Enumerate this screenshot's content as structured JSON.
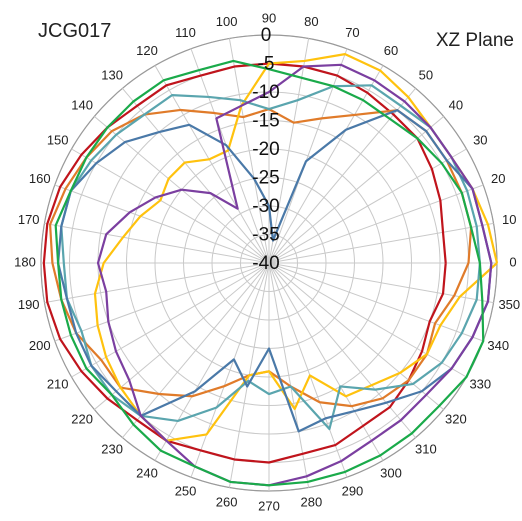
{
  "chart_data": {
    "type": "polar-line",
    "title": "JCG017",
    "subtitle": "XZ  Plane",
    "angular_ticks": [
      "0",
      "10",
      "20",
      "30",
      "40",
      "50",
      "60",
      "70",
      "80",
      "90",
      "100",
      "110",
      "120",
      "130",
      "140",
      "150",
      "160",
      "170",
      "180",
      "190",
      "200",
      "210",
      "220",
      "230",
      "240",
      "250",
      "260",
      "270",
      "280",
      "290",
      "300",
      "310",
      "320",
      "330",
      "340",
      "350"
    ],
    "radial_ticks": [
      "0",
      "-5",
      "-10",
      "-15",
      "-20",
      "-25",
      "-30",
      "-35",
      "-40"
    ],
    "radial_range": [
      -40,
      0
    ],
    "angular_step": 10,
    "grid": true,
    "legend": "none",
    "series": [
      {
        "color": "#c0141c",
        "values": [
          -9,
          -9,
          -8,
          -7,
          -6,
          -6,
          -5.5,
          -5,
          -5,
          -5,
          -5,
          -5,
          -4,
          -4,
          -3,
          -2,
          -1,
          -0.5,
          -0.5,
          -0.5,
          -1,
          -2,
          -3,
          -4,
          -4,
          -5,
          -5,
          -5,
          -6,
          -6,
          -7,
          -7,
          -8,
          -9,
          -10,
          -9
        ]
      },
      {
        "color": "#e07b2a",
        "values": [
          -5,
          -4,
          -4,
          -4,
          -4,
          -5,
          -10,
          -13,
          -15,
          -13,
          -14,
          -12,
          -9,
          -6,
          -4,
          -3,
          -2,
          -1,
          -2,
          -3,
          -4,
          -6,
          -6,
          -10,
          -13,
          -17,
          -20,
          -21,
          -18,
          -14,
          -11,
          -9,
          -8,
          -8,
          -9,
          -7
        ]
      },
      {
        "color": "#ffc20e",
        "values": [
          0,
          -1,
          -2,
          -3,
          -3,
          -2,
          -1,
          -1,
          -4,
          -5,
          -12,
          -19,
          -19,
          -17,
          -17,
          -18,
          -16,
          -14,
          -11,
          -9,
          -8,
          -7,
          -6,
          -5,
          -4,
          -8,
          -20,
          -21,
          -14,
          -19,
          -13,
          -12,
          -10,
          -8,
          -8,
          -6
        ]
      },
      {
        "color": "#5aa5ae",
        "values": [
          -3,
          -3,
          -3,
          -3,
          -3,
          -4,
          -4,
          -7,
          -11,
          -13,
          -11,
          -9,
          -6,
          -6,
          -5,
          -4,
          -3,
          -3,
          -4,
          -4,
          -5,
          -4,
          -4,
          -5,
          -8,
          -13,
          -19,
          -17,
          -18,
          -9,
          -15,
          -11,
          -7,
          -5,
          -4,
          -3
        ]
      },
      {
        "color": "#4a79a8",
        "values": [
          -1,
          -2,
          -2,
          -4,
          -4,
          -5,
          -13,
          -21,
          -36,
          -30,
          -25,
          -18,
          -12,
          -10,
          -7,
          -5,
          -3,
          -3,
          -3,
          -4,
          -4,
          -4,
          -5,
          -5,
          -14,
          -22,
          -18,
          -25,
          -10,
          -11,
          -10,
          -8,
          -5,
          -3,
          -2,
          -1
        ]
      },
      {
        "color": "#7b3fa0",
        "values": [
          -1,
          -2,
          -2,
          -3,
          -3,
          -3,
          -3,
          -3,
          -5,
          -10,
          -12,
          -13,
          -29,
          -24,
          -20,
          -17,
          -14,
          -11,
          -10,
          -11,
          -10,
          -9,
          -8,
          -5,
          -4,
          -2,
          -1,
          -1,
          -2,
          -3,
          -4,
          -4,
          -4,
          -3,
          -2,
          -1
        ]
      },
      {
        "color": "#1aaa4a",
        "values": [
          -3,
          -4,
          -4,
          -5,
          -6,
          -7,
          -7,
          -7,
          -7,
          -6,
          -4,
          -4,
          -3,
          -3,
          -3,
          -3,
          -3,
          -2,
          -3,
          -3,
          -3,
          -3,
          -4,
          -3,
          -2,
          -2,
          -1,
          -1,
          -1,
          -1,
          -1,
          -1,
          -1,
          0,
          0,
          -2
        ]
      }
    ]
  }
}
